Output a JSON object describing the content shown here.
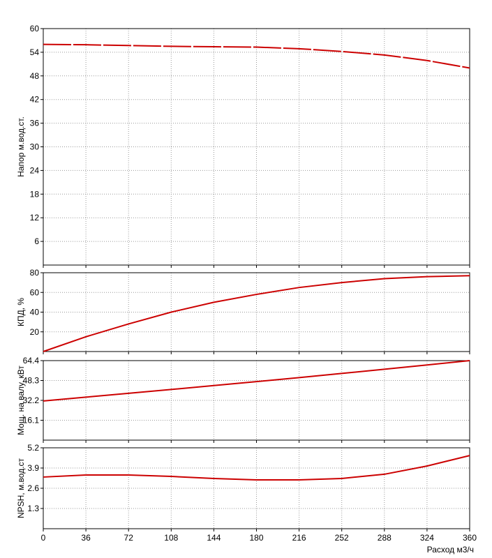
{
  "chart_data": [
    {
      "type": "line",
      "y_label": "Напор м.вод.ст.",
      "color": "#cc0000",
      "dashed": true,
      "x": [
        0,
        36,
        72,
        108,
        144,
        180,
        216,
        252,
        288,
        324,
        360
      ],
      "values": [
        56,
        55.9,
        55.7,
        55.5,
        55.4,
        55.3,
        54.9,
        54.2,
        53.3,
        51.9,
        50.0
      ],
      "xlim": [
        0,
        360
      ],
      "xticks": [
        0,
        36,
        72,
        108,
        144,
        180,
        216,
        252,
        288,
        324,
        360
      ],
      "ylim": [
        0,
        60
      ],
      "yticks": [
        6,
        12,
        18,
        24,
        30,
        36,
        42,
        48,
        54,
        60
      ],
      "grid": true
    },
    {
      "type": "line",
      "y_label": "КПД, %",
      "color": "#cc0000",
      "dashed": false,
      "x": [
        0,
        36,
        72,
        108,
        144,
        180,
        216,
        252,
        288,
        324,
        360
      ],
      "values": [
        0,
        15,
        28,
        40,
        50,
        58,
        65,
        70,
        74,
        76,
        77
      ],
      "xlim": [
        0,
        360
      ],
      "xticks": [
        0,
        36,
        72,
        108,
        144,
        180,
        216,
        252,
        288,
        324,
        360
      ],
      "ylim": [
        0,
        80
      ],
      "yticks": [
        20,
        40,
        60,
        80
      ],
      "grid": true
    },
    {
      "type": "line",
      "y_label": "Мощ. на валу, кВт",
      "color": "#cc0000",
      "dashed": false,
      "x": [
        0,
        36,
        72,
        108,
        144,
        180,
        216,
        252,
        288,
        324,
        360
      ],
      "values": [
        31.7,
        34.8,
        37.9,
        41,
        44.2,
        47.4,
        50.6,
        54,
        57.4,
        60.9,
        64.4
      ],
      "xlim": [
        0,
        360
      ],
      "xticks": [
        0,
        36,
        72,
        108,
        144,
        180,
        216,
        252,
        288,
        324,
        360
      ],
      "ylim": [
        0,
        64.4
      ],
      "yticks": [
        16.1,
        32.2,
        48.3,
        64.4
      ],
      "grid": true
    },
    {
      "type": "line",
      "y_label": "NPSH, м.вод.ст",
      "x_label": "Расход м3/ч",
      "color": "#cc0000",
      "dashed": false,
      "x": [
        0,
        36,
        72,
        108,
        144,
        180,
        216,
        252,
        288,
        324,
        360
      ],
      "values": [
        3.32,
        3.45,
        3.45,
        3.36,
        3.23,
        3.14,
        3.14,
        3.23,
        3.5,
        4.03,
        4.7
      ],
      "xlim": [
        0,
        360
      ],
      "xticks": [
        0,
        36,
        72,
        108,
        144,
        180,
        216,
        252,
        288,
        324,
        360
      ],
      "ylim": [
        0,
        5.2
      ],
      "yticks": [
        1.3,
        2.6,
        3.9,
        5.2
      ],
      "grid": true,
      "show_xtick_labels": true
    }
  ]
}
